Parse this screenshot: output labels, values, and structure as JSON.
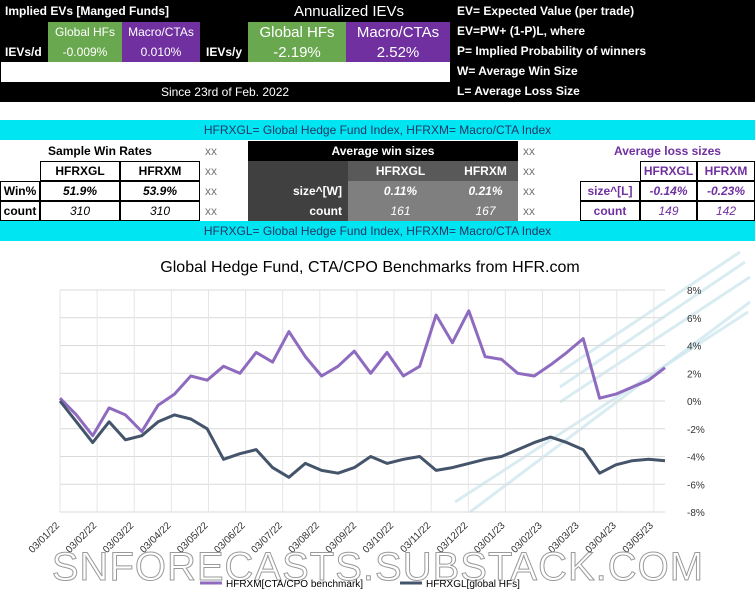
{
  "top_left": {
    "title": "Implied EVs  [Manged Funds]",
    "col_global": "Global HFs",
    "col_macro": "Macro/CTAs",
    "row_label": "IEVs/d",
    "global_value": "-0.009%",
    "macro_value": "0.010%",
    "since": "Since 23rd of Feb. 2022"
  },
  "top_mid": {
    "title": "Annualized IEVs",
    "col_global": "Global HFs",
    "col_macro": "Macro/CTAs",
    "row_label": "IEVs/y",
    "global_value": "-2.19%",
    "macro_value": "2.52%"
  },
  "legend_defs": {
    "ev": "EV= Expected Value (per trade)",
    "formula": "EV=PW+ (1-P)L, where",
    "p": "P= Implied Probability of winners",
    "w": "W= Average Win Size",
    "l": "L= Average Loss Size"
  },
  "index_banner": "HFRXGL= Global Hedge Fund Index, HFRXM= Macro/CTA Index",
  "win_rates": {
    "title": "Sample Win Rates",
    "col1": "HFRXGL",
    "col2": "HFRXM",
    "row1_label": "Win%",
    "row1_v1": "51.9%",
    "row1_v2": "53.9%",
    "row2_label": "count",
    "row2_v1": "310",
    "row2_v2": "310"
  },
  "win_sizes": {
    "title": "Average win sizes",
    "col1": "HFRXGL",
    "col2": "HFRXM",
    "row1_label": "size^[W]",
    "row1_v1": "0.11%",
    "row1_v2": "0.21%",
    "row2_label": "count",
    "row2_v1": "161",
    "row2_v2": "167"
  },
  "loss_sizes": {
    "title": "Average loss sizes",
    "col1": "HFRXGL",
    "col2": "HFRXM",
    "row1_label": "size^[L]",
    "row1_v1": "-0.14%",
    "row1_v2": "-0.23%",
    "row2_label": "count",
    "row2_v1": "149",
    "row2_v2": "142"
  },
  "xx": "xx",
  "colors": {
    "macro_series": "#8e6bbf",
    "global_series": "#44546a",
    "green": "#6aa84f",
    "purple": "#7030a0",
    "cyan": "#00e5f2"
  },
  "watermark": "SNFORECASTS.SUBSTACK.COM",
  "chart_data": {
    "type": "line",
    "title": "Global Hedge Fund, CTA/CPO Benchmarks from HFR.com",
    "x_ticks": [
      "03/01/22",
      "03/02/22",
      "03/03/22",
      "03/04/22",
      "03/05/22",
      "03/06/22",
      "03/07/22",
      "03/08/22",
      "03/09/22",
      "03/10/22",
      "03/11/22",
      "03/12/22",
      "03/01/23",
      "03/02/23",
      "03/03/23",
      "03/04/23",
      "03/05/23"
    ],
    "y_ticks": [
      "8%",
      "6%",
      "4%",
      "2%",
      "0%",
      "-2%",
      "-4%",
      "-6%",
      "-8%"
    ],
    "ylim": [
      -8,
      8
    ],
    "grid": true,
    "legend_position": "bottom",
    "series": [
      {
        "name": "HFRXM[CTA/CPO benchmark]",
        "color": "#8e6bbf",
        "values": [
          0.2,
          -1.0,
          -2.5,
          -0.5,
          -1.0,
          -2.2,
          -0.3,
          0.5,
          1.8,
          1.5,
          2.5,
          2.0,
          3.5,
          2.8,
          5.0,
          3.2,
          1.8,
          2.5,
          3.6,
          2.0,
          3.5,
          1.8,
          2.5,
          6.2,
          4.2,
          6.5,
          3.2,
          3.0,
          2.0,
          1.8,
          2.6,
          3.5,
          4.5,
          0.2,
          0.5,
          1.0,
          1.5,
          2.4
        ]
      },
      {
        "name": "HFRXGL[global HFs]",
        "color": "#44546a",
        "values": [
          0.0,
          -1.5,
          -3.0,
          -1.5,
          -2.8,
          -2.5,
          -1.5,
          -1.0,
          -1.3,
          -2.0,
          -4.2,
          -3.8,
          -3.5,
          -4.8,
          -5.5,
          -4.5,
          -5.0,
          -5.2,
          -4.8,
          -4.0,
          -4.5,
          -4.2,
          -4.0,
          -5.0,
          -4.8,
          -4.5,
          -4.2,
          -4.0,
          -3.5,
          -3.0,
          -2.6,
          -3.0,
          -3.5,
          -5.2,
          -4.6,
          -4.3,
          -4.2,
          -4.3
        ]
      }
    ]
  }
}
